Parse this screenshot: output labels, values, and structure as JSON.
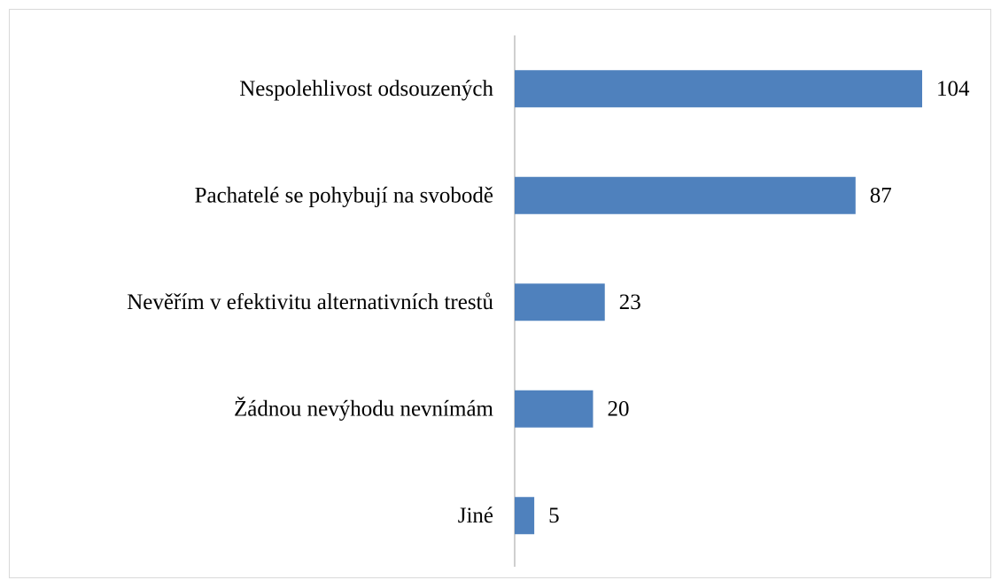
{
  "chart_data": {
    "type": "barh",
    "categories": [
      "Nespolehlivost odsouzených",
      "Pachatelé se pohybují na svobodě",
      "Nevěřím v efektivitu alternativních trestů",
      "Žádnou nevýhodu nevnímám",
      "Jiné"
    ],
    "values": [
      104,
      87,
      23,
      20,
      5
    ],
    "color": "#4f81bd"
  }
}
